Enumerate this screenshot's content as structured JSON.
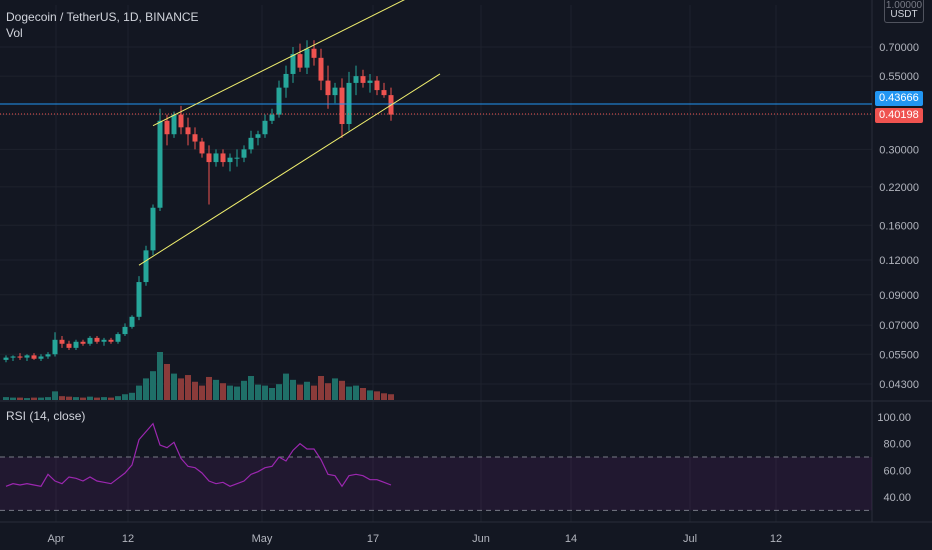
{
  "header": {
    "symbol": "Dogecoin / TetherUS, 1D, BINANCE",
    "volume_label": "Vol",
    "unit_top": "1.00000",
    "unit_currency": "USDT"
  },
  "price_axis": {
    "ticks": [
      "0.70000",
      "0.55000",
      "0.40000",
      "0.30000",
      "0.22000",
      "0.16000",
      "0.12000",
      "0.09000",
      "0.07000",
      "0.05500",
      "0.04300"
    ],
    "current_price": "0.40198",
    "hline_price": "0.43666",
    "scale": "log"
  },
  "rsi": {
    "title": "RSI (14, close)",
    "ticks": [
      "100.00",
      "80.00",
      "60.00",
      "40.00"
    ],
    "upper_band": 70,
    "lower_band": 30,
    "values": [
      48,
      50,
      49,
      50,
      49,
      48,
      57,
      52,
      50,
      55,
      54,
      52,
      55,
      52,
      51,
      50,
      54,
      58,
      64,
      83,
      89,
      95,
      79,
      77,
      81,
      69,
      63,
      62,
      58,
      52,
      50,
      51,
      48,
      50,
      52,
      57,
      59,
      62,
      63,
      70,
      67,
      75,
      80,
      76,
      76,
      68,
      57,
      56,
      48,
      56,
      57,
      56,
      53,
      53,
      51,
      49
    ]
  },
  "time_axis": {
    "labels": [
      "Apr",
      "12",
      "May",
      "17",
      "Jun",
      "14",
      "Jul",
      "12"
    ]
  },
  "colors": {
    "up": "#26a69a",
    "down": "#ef5350",
    "channel": "#f0ef6e",
    "hline": "#2196f3",
    "rsi_line": "#9c27b0",
    "background": "#131722"
  },
  "chart_data": {
    "type": "candlestick",
    "title": "Dogecoin / TetherUS, 1D, BINANCE",
    "y_scale": "log",
    "ylim": [
      0.04,
      1.0
    ],
    "candles": [
      [
        0.0525,
        0.0545,
        0.0515,
        0.0535
      ],
      [
        0.0535,
        0.0545,
        0.052,
        0.054
      ],
      [
        0.054,
        0.0555,
        0.0525,
        0.0535
      ],
      [
        0.0535,
        0.055,
        0.052,
        0.0545
      ],
      [
        0.0545,
        0.0555,
        0.0525,
        0.053
      ],
      [
        0.053,
        0.055,
        0.052,
        0.054
      ],
      [
        0.054,
        0.056,
        0.053,
        0.055
      ],
      [
        0.055,
        0.066,
        0.054,
        0.062
      ],
      [
        0.062,
        0.064,
        0.058,
        0.06
      ],
      [
        0.06,
        0.0615,
        0.057,
        0.058
      ],
      [
        0.058,
        0.062,
        0.057,
        0.061
      ],
      [
        0.061,
        0.062,
        0.059,
        0.06
      ],
      [
        0.06,
        0.064,
        0.059,
        0.063
      ],
      [
        0.063,
        0.064,
        0.06,
        0.061
      ],
      [
        0.061,
        0.063,
        0.059,
        0.062
      ],
      [
        0.062,
        0.063,
        0.06,
        0.061
      ],
      [
        0.061,
        0.066,
        0.06,
        0.065
      ],
      [
        0.065,
        0.071,
        0.064,
        0.069
      ],
      [
        0.069,
        0.076,
        0.068,
        0.075
      ],
      [
        0.075,
        0.105,
        0.073,
        0.1
      ],
      [
        0.1,
        0.135,
        0.097,
        0.13
      ],
      [
        0.13,
        0.19,
        0.125,
        0.185
      ],
      [
        0.185,
        0.42,
        0.18,
        0.38
      ],
      [
        0.38,
        0.4,
        0.31,
        0.34
      ],
      [
        0.34,
        0.41,
        0.33,
        0.4
      ],
      [
        0.4,
        0.43,
        0.34,
        0.36
      ],
      [
        0.36,
        0.39,
        0.31,
        0.34
      ],
      [
        0.34,
        0.36,
        0.3,
        0.32
      ],
      [
        0.32,
        0.33,
        0.28,
        0.29
      ],
      [
        0.29,
        0.31,
        0.19,
        0.27
      ],
      [
        0.27,
        0.3,
        0.26,
        0.29
      ],
      [
        0.29,
        0.3,
        0.26,
        0.27
      ],
      [
        0.27,
        0.29,
        0.25,
        0.28
      ],
      [
        0.28,
        0.3,
        0.26,
        0.28
      ],
      [
        0.28,
        0.31,
        0.27,
        0.3
      ],
      [
        0.3,
        0.35,
        0.29,
        0.33
      ],
      [
        0.33,
        0.35,
        0.31,
        0.34
      ],
      [
        0.34,
        0.4,
        0.33,
        0.38
      ],
      [
        0.38,
        0.42,
        0.37,
        0.4
      ],
      [
        0.4,
        0.53,
        0.39,
        0.5
      ],
      [
        0.5,
        0.6,
        0.46,
        0.56
      ],
      [
        0.56,
        0.7,
        0.52,
        0.66
      ],
      [
        0.66,
        0.72,
        0.57,
        0.59
      ],
      [
        0.59,
        0.74,
        0.56,
        0.69
      ],
      [
        0.69,
        0.74,
        0.6,
        0.64
      ],
      [
        0.64,
        0.69,
        0.49,
        0.53
      ],
      [
        0.53,
        0.6,
        0.42,
        0.47
      ],
      [
        0.47,
        0.52,
        0.44,
        0.5
      ],
      [
        0.5,
        0.54,
        0.33,
        0.37
      ],
      [
        0.37,
        0.57,
        0.35,
        0.52
      ],
      [
        0.52,
        0.6,
        0.47,
        0.55
      ],
      [
        0.55,
        0.58,
        0.5,
        0.52
      ],
      [
        0.52,
        0.56,
        0.48,
        0.53
      ],
      [
        0.53,
        0.55,
        0.47,
        0.49
      ],
      [
        0.49,
        0.52,
        0.46,
        0.47
      ],
      [
        0.47,
        0.5,
        0.38,
        0.4
      ]
    ],
    "volumes": [
      6,
      5,
      5,
      4,
      5,
      5,
      6,
      18,
      8,
      7,
      6,
      5,
      7,
      5,
      6,
      5,
      8,
      12,
      15,
      30,
      45,
      60,
      100,
      75,
      55,
      45,
      52,
      38,
      30,
      48,
      42,
      35,
      30,
      28,
      40,
      50,
      32,
      30,
      25,
      33,
      55,
      42,
      32,
      38,
      30,
      50,
      35,
      45,
      40,
      28,
      30,
      25,
      20,
      18,
      14,
      12
    ],
    "channel_lines": [
      {
        "name": "upper",
        "from_index": 21,
        "from_price": 0.365,
        "to_index": 59,
        "to_price": 1.1
      },
      {
        "name": "lower",
        "from_index": 19,
        "from_price": 0.115,
        "to_index": 62,
        "to_price": 0.56
      }
    ]
  }
}
